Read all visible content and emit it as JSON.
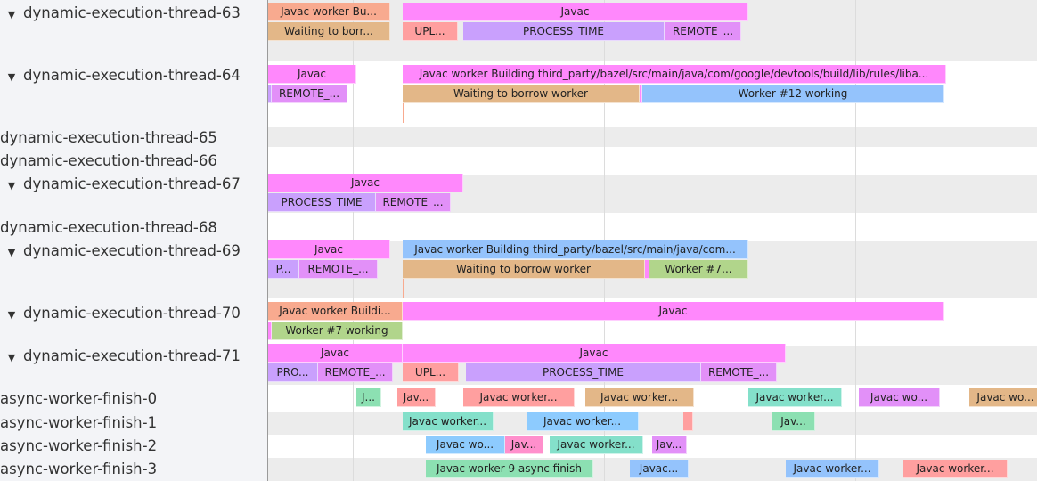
{
  "colors": {
    "pink": "#ff88fc",
    "salmon": "#f8aa8f",
    "tan": "#e3b788",
    "red": "#ff9f9f",
    "lavender": "#c9a0fd",
    "violet": "#e290f8",
    "blue": "#94c3fc",
    "green": "#b1d58b",
    "teal": "#84e0ca",
    "green2": "#8ce0b2",
    "lightblue": "#8dcbfe",
    "pink2": "#ff8fcc"
  },
  "tracks": [
    {
      "name": "dynamic-execution-thread-63",
      "expanded": true,
      "slices": [
        {
          "label": "Javac worker Bu...",
          "color": "salmon"
        },
        {
          "label": "Javac",
          "color": "pink"
        },
        {
          "label": "Waiting to borr...",
          "color": "tan"
        },
        {
          "label": "UPL...",
          "color": "red"
        },
        {
          "label": "PROCESS_TIME",
          "color": "lavender"
        },
        {
          "label": "REMOTE_...",
          "color": "violet"
        }
      ]
    },
    {
      "name": "dynamic-execution-thread-64",
      "expanded": true,
      "slices": [
        {
          "label": "Javac",
          "color": "pink"
        },
        {
          "label": "Javac worker Building third_party/bazel/src/main/java/com/google/devtools/build/lib/rules/liba...",
          "color": "pink"
        },
        {
          "label": "",
          "color": "lavender"
        },
        {
          "label": "REMOTE_...",
          "color": "violet"
        },
        {
          "label": "Waiting to borrow worker",
          "color": "tan"
        },
        {
          "label": "",
          "color": "pink"
        },
        {
          "label": "Worker #12 working",
          "color": "blue"
        }
      ]
    },
    {
      "name": "dynamic-execution-thread-65",
      "expanded": false,
      "slices": []
    },
    {
      "name": "dynamic-execution-thread-66",
      "expanded": false,
      "slices": []
    },
    {
      "name": "dynamic-execution-thread-67",
      "expanded": true,
      "slices": [
        {
          "label": "Javac",
          "color": "pink"
        },
        {
          "label": "PROCESS_TIME",
          "color": "lavender"
        },
        {
          "label": "REMOTE_...",
          "color": "violet"
        }
      ]
    },
    {
      "name": "dynamic-execution-thread-68",
      "expanded": false,
      "slices": []
    },
    {
      "name": "dynamic-execution-thread-69",
      "expanded": true,
      "slices": [
        {
          "label": "Javac",
          "color": "pink"
        },
        {
          "label": "Javac worker Building third_party/bazel/src/main/java/com...",
          "color": "blue"
        },
        {
          "label": "P...",
          "color": "lavender"
        },
        {
          "label": "REMOTE_...",
          "color": "violet"
        },
        {
          "label": "Waiting to borrow worker",
          "color": "tan"
        },
        {
          "label": "",
          "color": "pink"
        },
        {
          "label": "Worker #7...",
          "color": "green"
        }
      ]
    },
    {
      "name": "dynamic-execution-thread-70",
      "expanded": true,
      "slices": [
        {
          "label": "Javac worker Buildi...",
          "color": "salmon"
        },
        {
          "label": "Javac",
          "color": "pink"
        },
        {
          "label": "",
          "color": "pink"
        },
        {
          "label": "Worker #7 working",
          "color": "green"
        }
      ]
    },
    {
      "name": "dynamic-execution-thread-71",
      "expanded": true,
      "slices": [
        {
          "label": "Javac",
          "color": "pink"
        },
        {
          "label": "Javac",
          "color": "pink"
        },
        {
          "label": "PRO...",
          "color": "lavender"
        },
        {
          "label": "REMOTE_...",
          "color": "violet"
        },
        {
          "label": "UPL...",
          "color": "red"
        },
        {
          "label": "PROCESS_TIME",
          "color": "lavender"
        },
        {
          "label": "REMOTE_...",
          "color": "violet"
        }
      ]
    },
    {
      "name": "async-worker-finish-0",
      "expanded": false,
      "slices": [
        {
          "label": "J...",
          "color": "green2"
        },
        {
          "label": "Jav...",
          "color": "red"
        },
        {
          "label": "Javac worker...",
          "color": "red"
        },
        {
          "label": "Javac worker...",
          "color": "tan"
        },
        {
          "label": "Javac worker...",
          "color": "teal"
        },
        {
          "label": "Javac wo...",
          "color": "violet"
        },
        {
          "label": "Javac wo...",
          "color": "tan"
        }
      ]
    },
    {
      "name": "async-worker-finish-1",
      "expanded": false,
      "slices": [
        {
          "label": "Javac worker...",
          "color": "teal"
        },
        {
          "label": "Javac worker...",
          "color": "lightblue"
        },
        {
          "label": "",
          "color": "red"
        },
        {
          "label": "Jav...",
          "color": "green2"
        }
      ]
    },
    {
      "name": "async-worker-finish-2",
      "expanded": false,
      "slices": [
        {
          "label": "Javac wo...",
          "color": "lightblue"
        },
        {
          "label": "Jav...",
          "color": "pink2"
        },
        {
          "label": "Javac worker...",
          "color": "teal"
        },
        {
          "label": "Jav...",
          "color": "violet"
        }
      ]
    },
    {
      "name": "async-worker-finish-3",
      "expanded": false,
      "slices": [
        {
          "label": "Javac worker 9 async finish",
          "color": "green2"
        },
        {
          "label": "Javac...",
          "color": "blue"
        },
        {
          "label": "Javac worker...",
          "color": "blue"
        },
        {
          "label": "Javac worker...",
          "color": "red"
        }
      ]
    }
  ]
}
